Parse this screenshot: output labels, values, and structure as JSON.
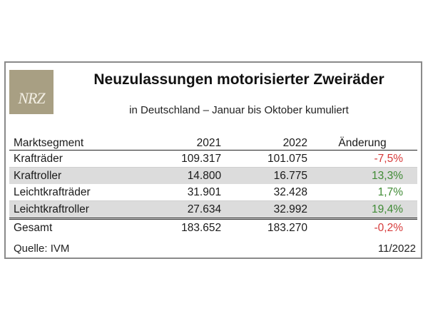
{
  "logo": {
    "text": "NRZ",
    "color": "#a89f83"
  },
  "title": "Neuzulassungen motorisierter Zweiräder",
  "subtitle": "in Deutschland – Januar bis Oktober kumuliert",
  "table": {
    "headers": [
      "Marktsegment",
      "2021",
      "2022",
      "Änderung"
    ],
    "rows": [
      {
        "segment": "Krafträder",
        "y2021": "109.317",
        "y2022": "101.075",
        "change": "-7,5%",
        "trend": "negative"
      },
      {
        "segment": "Kraftroller",
        "y2021": "14.800",
        "y2022": "16.775",
        "change": "13,3%",
        "trend": "positive"
      },
      {
        "segment": "Leichtkrafträder",
        "y2021": "31.901",
        "y2022": "32.428",
        "change": "1,7%",
        "trend": "positive"
      },
      {
        "segment": "Leichtkraftroller",
        "y2021": "27.634",
        "y2022": "32.992",
        "change": "19,4%",
        "trend": "positive"
      }
    ],
    "total": {
      "segment": "Gesamt",
      "y2021": "183.652",
      "y2022": "183.270",
      "change": "-0,2%",
      "trend": "negative"
    }
  },
  "source": "Quelle: IVM",
  "date": "11/2022",
  "colors": {
    "negative": "#d63a3a",
    "positive": "#3f8a34",
    "row_shade": "#dcdcdc"
  }
}
